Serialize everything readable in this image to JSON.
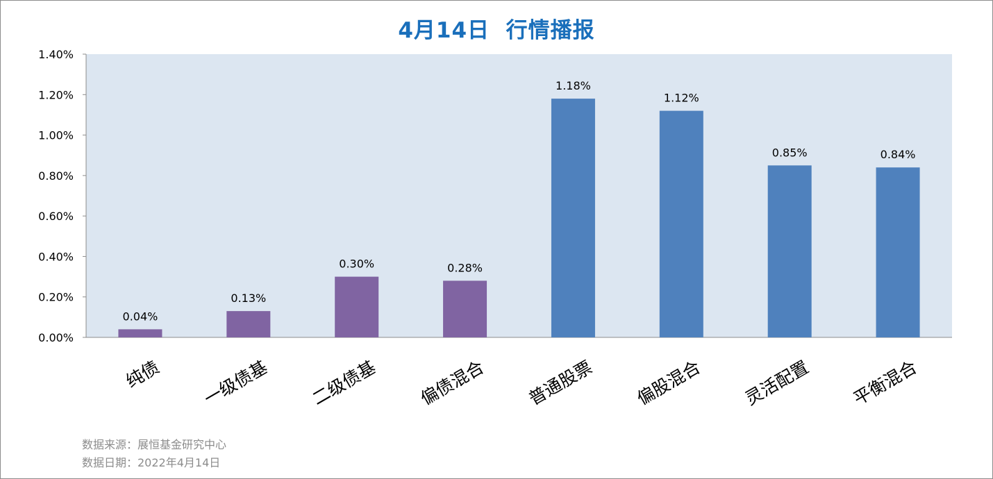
{
  "chart_data": {
    "type": "bar",
    "title": "4月14日  行情播报",
    "categories": [
      "纯债",
      "一级债基",
      "二级债基",
      "偏债混合",
      "普通股票",
      "偏股混合",
      "灵活配置",
      "平衡混合"
    ],
    "values": [
      0.04,
      0.13,
      0.3,
      0.28,
      1.18,
      1.12,
      0.85,
      0.84
    ],
    "value_labels": [
      "0.04%",
      "0.13%",
      "0.30%",
      "0.28%",
      "1.18%",
      "1.12%",
      "0.85%",
      "0.84%"
    ],
    "bar_colors": [
      "#8064a2",
      "#8064a2",
      "#8064a2",
      "#8064a2",
      "#4f81bd",
      "#4f81bd",
      "#4f81bd",
      "#4f81bd"
    ],
    "ylim": [
      0,
      1.4
    ],
    "y_ticks": [
      0,
      0.2,
      0.4,
      0.6,
      0.8,
      1.0,
      1.2,
      1.4
    ],
    "y_tick_labels": [
      "0.00%",
      "0.20%",
      "0.40%",
      "0.60%",
      "0.80%",
      "1.00%",
      "1.20%",
      "1.40%"
    ],
    "plot_background": "#dce6f1",
    "xlabel": "",
    "ylabel": "",
    "grid": false,
    "legend": "none"
  },
  "footer": {
    "source": "数据来源：展恒基金研究中心",
    "date": "数据日期：2022年4月14日"
  },
  "colors": {
    "title": "#1a6fbb",
    "footer_text": "#8c8c8c"
  }
}
